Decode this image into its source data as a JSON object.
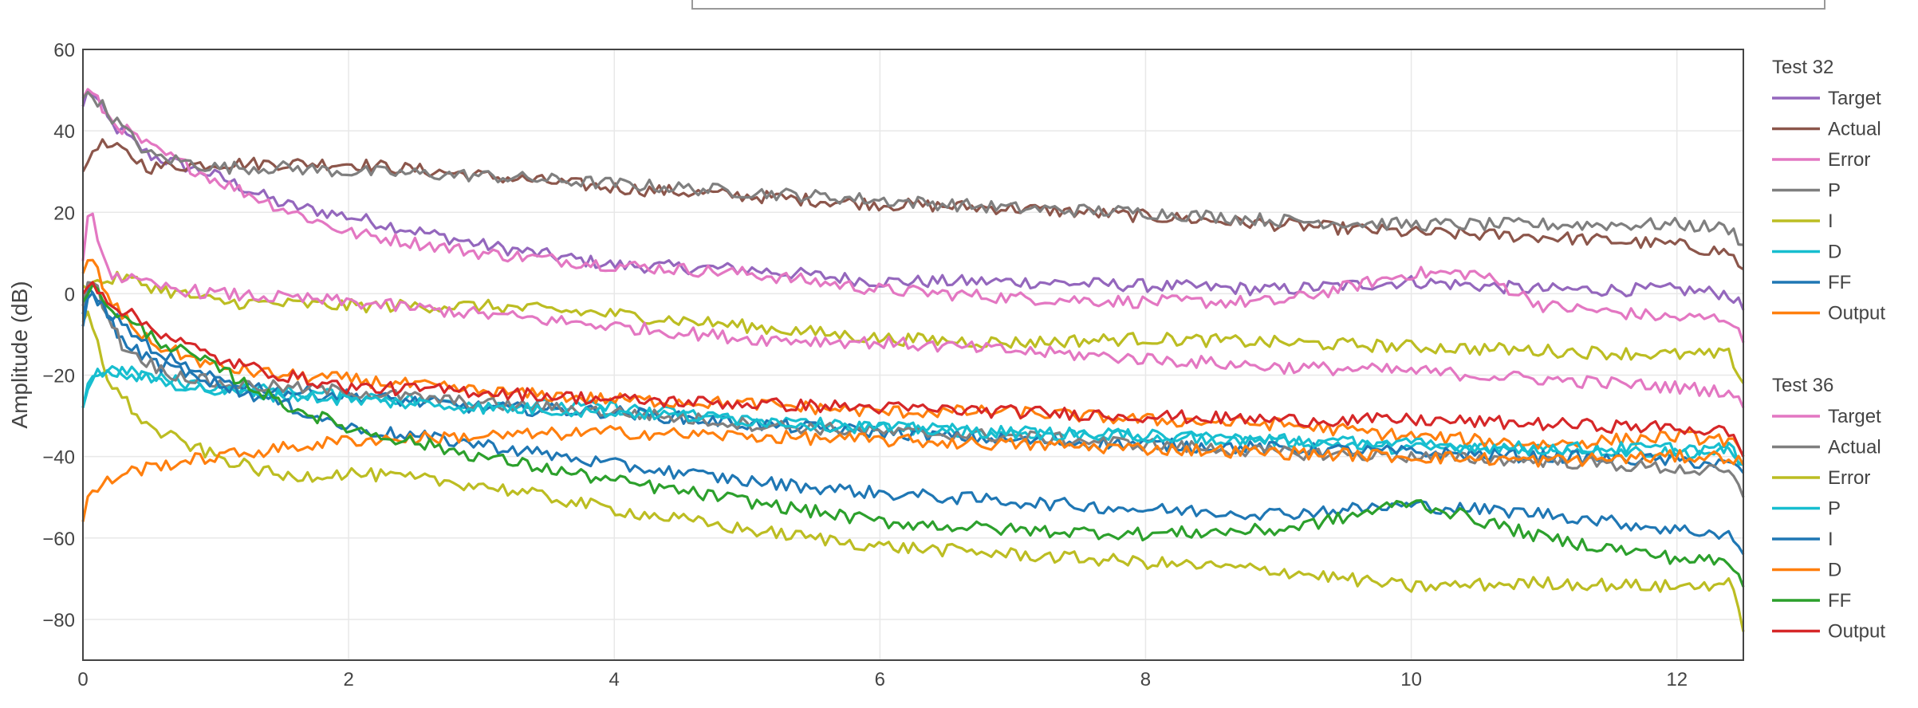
{
  "chart_data": {
    "type": "line",
    "title": "",
    "xlabel": "",
    "ylabel": "Amplitude (dB)",
    "xlim": [
      0,
      12.5
    ],
    "ylim": [
      -90,
      60
    ],
    "xticks": [
      0,
      2,
      4,
      6,
      8,
      10,
      12
    ],
    "yticks": [
      60,
      40,
      20,
      0,
      -20,
      -40,
      -60,
      -80
    ],
    "xtick_labels": [
      "0",
      "2",
      "4",
      "6",
      "8",
      "10",
      "12"
    ],
    "ytick_labels": [
      "60",
      "40",
      "20",
      "0",
      "−20",
      "−40",
      "−60",
      "−80"
    ],
    "grid": true,
    "legend_position": "right",
    "groups": [
      {
        "title": "Test 32",
        "series": [
          {
            "name": "Target",
            "color": "#9467bd",
            "x": [
              0,
              0.05,
              0.2,
              0.5,
              1,
              1.5,
              2,
              3,
              4,
              5,
              6,
              7,
              8,
              9,
              10,
              11,
              12,
              12.4,
              12.5
            ],
            "y": [
              46,
              51,
              42,
              34,
              29,
              22,
              19,
              12,
              7,
              6,
              3,
              3,
              2,
              1,
              3,
              1,
              1,
              0,
              -4
            ]
          },
          {
            "name": "Actual",
            "color": "#8c564b",
            "x": [
              0,
              0.1,
              0.3,
              0.5,
              1,
              1.5,
              2,
              3,
              4,
              5,
              6,
              7,
              8,
              9,
              10,
              11,
              12,
              12.4,
              12.5
            ],
            "y": [
              30,
              37,
              35,
              31,
              32,
              32,
              32,
              29,
              26,
              24,
              22,
              21,
              19,
              17,
              15,
              14,
              12,
              10,
              6
            ]
          },
          {
            "name": "Error",
            "color": "#e377c2",
            "x": [
              0,
              0.05,
              0.2,
              0.5,
              1,
              1.5,
              2,
              3,
              4,
              5,
              6,
              7,
              8,
              9,
              10,
              10.5,
              11,
              12,
              12.4,
              12.5
            ],
            "y": [
              48,
              50,
              43,
              36,
              28,
              21,
              15,
              10,
              7,
              5,
              1,
              -1,
              -2,
              -2,
              5,
              5,
              -3,
              -6,
              -6,
              -12
            ]
          },
          {
            "name": "P",
            "color": "#7f7f7f",
            "x": [
              0,
              0.05,
              0.2,
              0.5,
              1,
              1.5,
              2,
              3,
              4,
              5,
              6,
              7,
              8,
              9,
              10,
              11,
              12,
              12.4,
              12.5
            ],
            "y": [
              48,
              50,
              44,
              34,
              31,
              31,
              30,
              29,
              27,
              25,
              23,
              21,
              20,
              18,
              17,
              17,
              17,
              16,
              12
            ]
          },
          {
            "name": "I",
            "color": "#bcbd22",
            "x": [
              0,
              0.3,
              0.6,
              1,
              2,
              3,
              4,
              5,
              6,
              7,
              8,
              9,
              10,
              11,
              12,
              12.4,
              12.5
            ],
            "y": [
              2,
              4,
              1,
              -2,
              -3,
              -3,
              -5,
              -8,
              -11,
              -12,
              -11,
              -12,
              -13,
              -14,
              -15,
              -15,
              -22
            ]
          },
          {
            "name": "D",
            "color": "#17becf",
            "x": [
              0,
              0.05,
              0.3,
              0.6,
              1,
              1.5,
              2,
              3,
              4,
              5,
              6,
              7,
              8,
              9,
              10,
              11,
              12,
              12.4,
              12.5
            ],
            "y": [
              -28,
              -20,
              -19,
              -21,
              -23,
              -24,
              -25,
              -27,
              -28,
              -31,
              -33,
              -34,
              -35,
              -36,
              -38,
              -38,
              -39,
              -39,
              -42
            ]
          },
          {
            "name": "FF",
            "color": "#1f77b4",
            "x": [
              0,
              0.05,
              0.3,
              0.6,
              1,
              1.5,
              2,
              3,
              4,
              5,
              6,
              7,
              8,
              9,
              10,
              11,
              12,
              12.4,
              12.5
            ],
            "y": [
              -5,
              3,
              -12,
              -18,
              -21,
              -24,
              -25,
              -28,
              -29,
              -32,
              -34,
              -36,
              -37,
              -38,
              -39,
              -40,
              -41,
              -42,
              -44
            ]
          },
          {
            "name": "Output",
            "color": "#ff7f0e",
            "x": [
              0,
              0.05,
              0.2,
              0.5,
              1,
              1.5,
              2,
              3,
              4,
              5,
              6,
              7,
              8,
              9,
              10,
              11,
              12,
              12.4,
              12.5
            ],
            "y": [
              5,
              10,
              -2,
              -12,
              -18,
              -20,
              -21,
              -24,
              -26,
              -27,
              -29,
              -29,
              -31,
              -32,
              -35,
              -37,
              -35,
              -36,
              -40
            ]
          }
        ]
      },
      {
        "title": "Test 36",
        "series": [
          {
            "name": "Target",
            "color": "#e377c2",
            "x": [
              0,
              0.05,
              0.2,
              0.5,
              1,
              2,
              3,
              4,
              5,
              6,
              7,
              8,
              9,
              10,
              11,
              12,
              12.4,
              12.5
            ],
            "y": [
              8,
              21,
              5,
              2,
              0,
              -2,
              -5,
              -8,
              -11,
              -12,
              -14,
              -16,
              -18,
              -19,
              -21,
              -23,
              -24,
              -28
            ]
          },
          {
            "name": "Actual",
            "color": "#7f7f7f",
            "x": [
              0,
              0.05,
              0.3,
              0.6,
              1,
              1.5,
              2,
              3,
              4,
              5,
              6,
              7,
              8,
              9,
              10,
              11,
              12,
              12.4,
              12.5
            ],
            "y": [
              -3,
              5,
              -13,
              -19,
              -22,
              -23,
              -24,
              -27,
              -29,
              -32,
              -34,
              -35,
              -37,
              -39,
              -40,
              -41,
              -43,
              -44,
              -50
            ]
          },
          {
            "name": "Error",
            "color": "#bcbd22",
            "x": [
              0,
              0.05,
              0.2,
              0.5,
              1,
              1.5,
              2,
              3,
              4,
              5,
              6,
              7,
              8,
              9,
              10,
              11,
              12,
              12.4,
              12.5
            ],
            "y": [
              -7,
              -5,
              -22,
              -33,
              -40,
              -45,
              -44,
              -47,
              -53,
              -58,
              -62,
              -64,
              -66,
              -68,
              -72,
              -71,
              -72,
              -71,
              -83
            ]
          },
          {
            "name": "P",
            "color": "#17becf",
            "x": [
              0,
              0.05,
              0.2,
              0.5,
              1,
              1.5,
              2,
              3,
              4,
              5,
              6,
              7,
              8,
              9,
              10,
              11,
              12,
              12.4,
              12.5
            ],
            "y": [
              -28,
              -20,
              -19,
              -21,
              -24,
              -25,
              -26,
              -28,
              -29,
              -31,
              -33,
              -34,
              -35,
              -36,
              -37,
              -38,
              -38,
              -38,
              -42
            ]
          },
          {
            "name": "I",
            "color": "#1f77b4",
            "x": [
              0,
              0.05,
              0.3,
              0.6,
              1,
              1.5,
              2,
              3,
              4,
              5,
              6,
              7,
              8,
              9,
              10,
              11,
              12,
              12.4,
              12.5
            ],
            "y": [
              -8,
              0,
              -8,
              -15,
              -22,
              -27,
              -33,
              -37,
              -42,
              -46,
              -49,
              -51,
              -53,
              -54,
              -52,
              -54,
              -58,
              -59,
              -64
            ]
          },
          {
            "name": "D",
            "color": "#ff7f0e",
            "x": [
              0,
              0.05,
              0.3,
              0.6,
              1,
              1.5,
              2,
              3,
              4,
              5,
              6,
              7,
              8,
              9,
              10,
              11,
              12,
              12.4,
              12.5
            ],
            "y": [
              -56,
              -49,
              -44,
              -42,
              -40,
              -38,
              -36,
              -35,
              -34,
              -35,
              -36,
              -37,
              -38,
              -39,
              -40,
              -41,
              -40,
              -40,
              -42
            ]
          },
          {
            "name": "FF",
            "color": "#2ca02c",
            "x": [
              0,
              0.05,
              0.3,
              0.6,
              1,
              1.5,
              2,
              3,
              4,
              5,
              6,
              7,
              8,
              9,
              9.5,
              10,
              11,
              12,
              12.4,
              12.5
            ],
            "y": [
              -2,
              2,
              -6,
              -12,
              -18,
              -27,
              -33,
              -40,
              -46,
              -51,
              -56,
              -58,
              -59,
              -58,
              -55,
              -51,
              -60,
              -65,
              -66,
              -72
            ]
          },
          {
            "name": "Output",
            "color": "#d62728",
            "x": [
              0,
              0.05,
              0.2,
              0.5,
              1,
              1.5,
              2,
              3,
              4,
              5,
              6,
              7,
              8,
              9,
              10,
              11,
              12,
              12.4,
              12.5
            ],
            "y": [
              0,
              4,
              -2,
              -8,
              -16,
              -20,
              -23,
              -24,
              -26,
              -27,
              -28,
              -29,
              -30,
              -31,
              -31,
              -32,
              -33,
              -34,
              -40
            ]
          }
        ]
      }
    ]
  }
}
